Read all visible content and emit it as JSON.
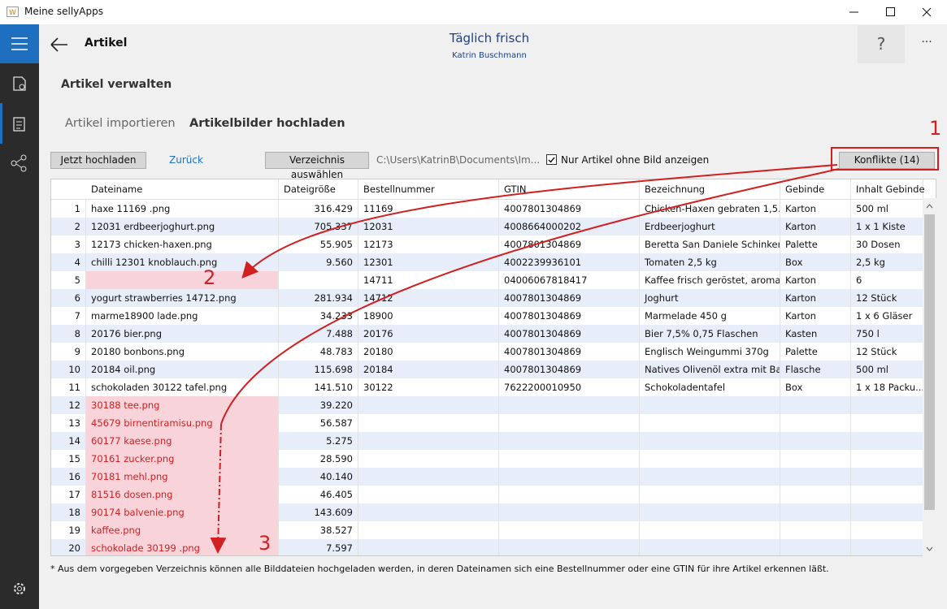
{
  "window": {
    "title": "Meine sellyApps"
  },
  "header": {
    "page": "Artikel",
    "store": "Täglich frisch",
    "user": "Katrin Buschmann",
    "help": "?",
    "more": "···"
  },
  "section": "Artikel verwalten",
  "tabs": [
    "Artikel importieren",
    "Artikelbilder hochladen"
  ],
  "toolbar": {
    "upload": "Jetzt hochladen",
    "back": "Zurück",
    "choose": "Verzeichnis auswählen",
    "path": "C:\\Users\\KatrinB\\Documents\\Im...",
    "checkbox": "Nur Artikel ohne Bild anzeigen",
    "conflicts": "Konflikte (14)"
  },
  "table": {
    "columns": [
      "Dateiname",
      "Dateigröße",
      "Bestellnummer",
      "GTIN",
      "Bezeichnung",
      "Gebinde",
      "Inhalt Gebinde"
    ],
    "rows": [
      [
        "1",
        "haxe 11169 .png",
        "316.429",
        "11169",
        "4007801304869",
        "Chicken-Haxen gebraten 1,5...",
        "Karton",
        "500 ml"
      ],
      [
        "2",
        "12031 erdbeerjoghurt.png",
        "705.337",
        "12031",
        "4008664000202",
        "Erdbeerjoghurt",
        "Karton",
        "1 x 1 Kiste"
      ],
      [
        "3",
        "12173 chicken-haxen.png",
        "55.905",
        "12173",
        "4007801304869",
        "Beretta San Daniele Schinken...",
        "Palette",
        "30 Dosen"
      ],
      [
        "4",
        "chilli 12301 knoblauch.png",
        "9.560",
        "12301",
        "4002239936101",
        "Tomaten 2,5 kg",
        "Box",
        "2,5 kg"
      ],
      [
        "5",
        null,
        null,
        "14711",
        "04006067818417",
        "Kaffee frisch geröstet, aroma...",
        "Karton",
        "6"
      ],
      [
        "6",
        "yogurt strawberries 14712.png",
        "281.934",
        "14712",
        "4007801304869",
        "Joghurt",
        "Karton",
        "12 Stück"
      ],
      [
        "7",
        "marme18900 lade.png",
        "34.233",
        "18900",
        "4007801304869",
        "Marmelade 450 g",
        "Karton",
        "1 x 6 Gläser"
      ],
      [
        "8",
        "20176 bier.png",
        "7.488",
        "20176",
        "4007801304869",
        "Bier 7,5% 0,75 Flaschen",
        "Kasten",
        "750 l"
      ],
      [
        "9",
        "20180 bonbons.png",
        "48.783",
        "20180",
        "4007801304869",
        "Englisch Weingummi 370g",
        "Palette",
        "12 Stück"
      ],
      [
        "10",
        "20184 oil.png",
        "115.698",
        "20184",
        "4007801304869",
        "Natives Olivenöl extra mit Ba...",
        "Flasche",
        "500 ml"
      ],
      [
        "11",
        "schokoladen 30122  tafel.png",
        "141.510",
        "30122",
        "7622200010950",
        "Schokoladentafel",
        "Box",
        "1 x 18 Packu..."
      ],
      [
        "12",
        "30188 tee.png",
        "39.220",
        null,
        null,
        null,
        null,
        null
      ],
      [
        "13",
        "45679 birnentiramisu.png",
        "56.587",
        null,
        null,
        null,
        null,
        null
      ],
      [
        "14",
        "60177 kaese.png",
        "5.275",
        null,
        null,
        null,
        null,
        null
      ],
      [
        "15",
        "70161 zucker.png",
        "28.590",
        null,
        null,
        null,
        null,
        null
      ],
      [
        "16",
        "70181 mehl.png",
        "40.140",
        null,
        null,
        null,
        null,
        null
      ],
      [
        "17",
        "81516 dosen.png",
        "46.405",
        null,
        null,
        null,
        null,
        null
      ],
      [
        "18",
        "90174 balvenie.png",
        "143.609",
        null,
        null,
        null,
        null,
        null
      ],
      [
        "19",
        "kaffee.png",
        "38.527",
        null,
        null,
        null,
        null,
        null
      ],
      [
        "20",
        "schokolade 30199 .png",
        "7.597",
        null,
        null,
        null,
        null,
        null
      ]
    ]
  },
  "footnote": "* Aus dem vorgegeben Verzeichnis können alle Bilddateien hochgeladen werden, in deren Dateinamen sich eine Bestellnummer oder eine GTIN für ihre Artikel erkennen läßt.",
  "annotations": [
    "1",
    "2",
    "3"
  ]
}
